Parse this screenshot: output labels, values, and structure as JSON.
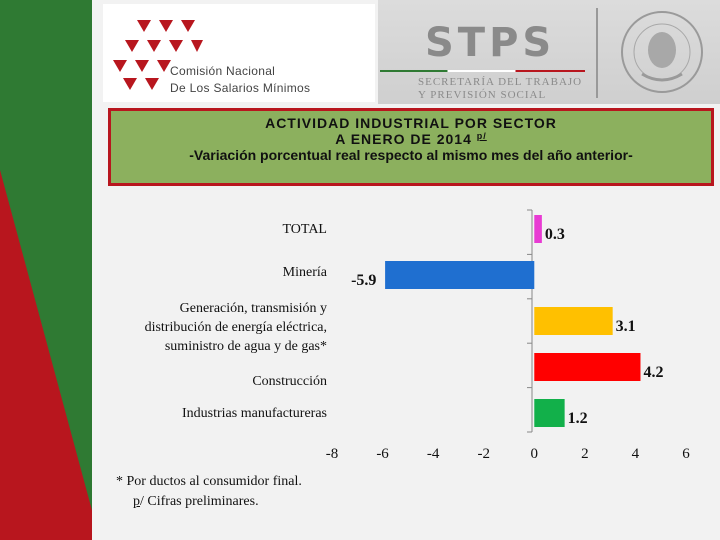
{
  "header": {
    "org_line1": "Comisión Nacional",
    "org_line2": "De Los Salarios Mínimos",
    "agency": "STPS",
    "agency_sub1": "SECRETARÍA DEL TRABAJO",
    "agency_sub2": "Y PREVISIÓN SOCIAL"
  },
  "title": {
    "line1": "ACTIVIDAD INDUSTRIAL POR SECTOR",
    "line2": "A ENERO DE 2014",
    "line2_note": "p/",
    "line3": "-Variación porcentual real respecto al mismo mes del año anterior-"
  },
  "chart_data": {
    "type": "bar",
    "orientation": "horizontal",
    "categories": [
      [
        "TOTAL"
      ],
      [
        "Minería"
      ],
      [
        "Generación, transmisión y",
        "distribución de energía eléctrica,",
        "suministro de agua y de gas*"
      ],
      [
        "Construcción"
      ],
      [
        "Industrias manufactureras"
      ]
    ],
    "values": [
      0.3,
      -5.9,
      3.1,
      4.2,
      1.2
    ],
    "value_labels": [
      "0.3",
      "-5.9",
      "3.1",
      "4.2",
      "1.2"
    ],
    "colors": [
      "#e83bd3",
      "#1f6fd0",
      "#ffc000",
      "#ff0000",
      "#12b04a"
    ],
    "xlim": [
      -8,
      6
    ],
    "xticks": [
      "-8",
      "-6",
      "-4",
      "-2",
      "0",
      "2",
      "4",
      "6"
    ],
    "grid": false,
    "legend": "none"
  },
  "footnotes": {
    "note1": "* Por ductos al consumidor final.",
    "note2_mark": "p",
    "note2_text": "/ Cifras preliminares."
  }
}
